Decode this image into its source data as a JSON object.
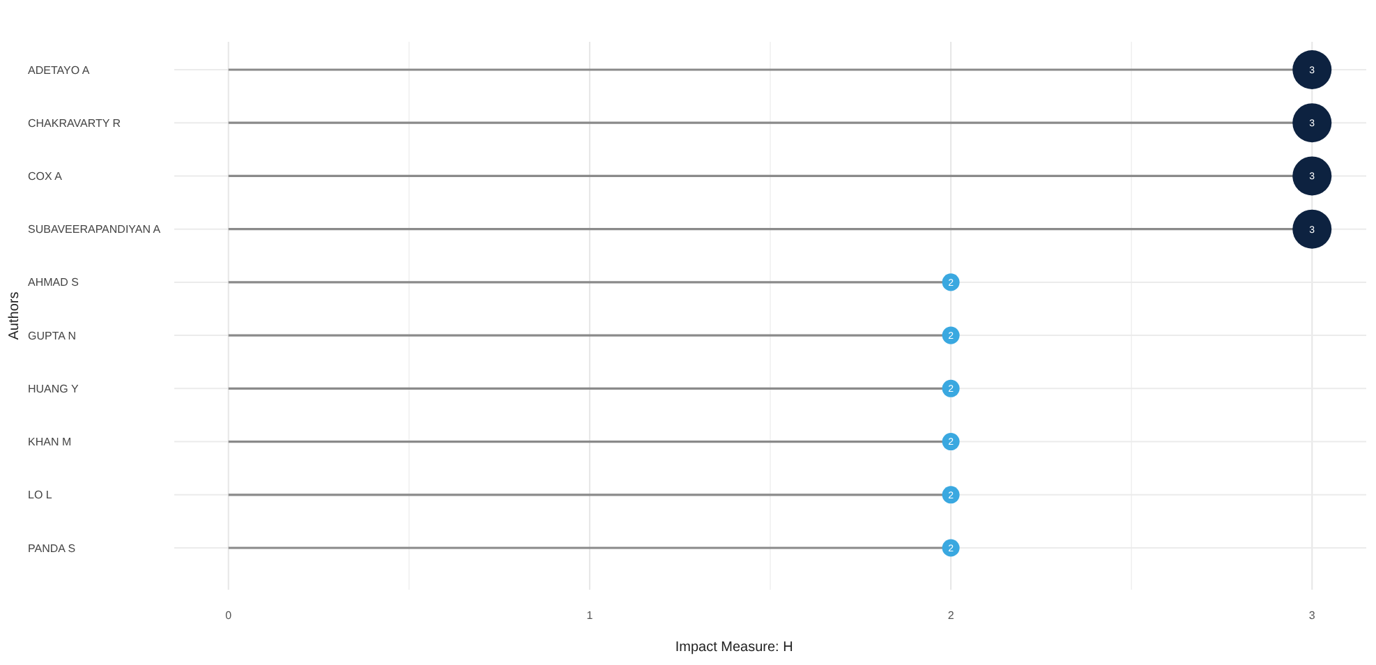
{
  "chart_data": {
    "type": "lollipop",
    "orientation": "horizontal",
    "xlabel": "Impact Measure: H",
    "ylabel": "Authors",
    "categories": [
      "ADETAYO A",
      "CHAKRAVARTY R",
      "COX A",
      "SUBAVEERAPANDIYAN A",
      "AHMAD S",
      "GUPTA N",
      "HUANG Y",
      "KHAN M",
      "LO L",
      "PANDA S"
    ],
    "values": [
      3,
      3,
      3,
      3,
      2,
      2,
      2,
      2,
      2,
      2
    ],
    "sizes": [
      1,
      1,
      1,
      1,
      0.2,
      0.2,
      0.2,
      0.2,
      0.2,
      0.2
    ],
    "colors": [
      "#0d2240",
      "#0d2240",
      "#0d2240",
      "#0d2240",
      "#3aa8e0",
      "#3aa8e0",
      "#3aa8e0",
      "#3aa8e0",
      "#3aa8e0",
      "#3aa8e0"
    ],
    "xlim": [
      -0.15,
      3.15
    ],
    "xticks": [
      0,
      1,
      2,
      3
    ],
    "grid": true,
    "marker": "circle",
    "data_labels": true
  }
}
